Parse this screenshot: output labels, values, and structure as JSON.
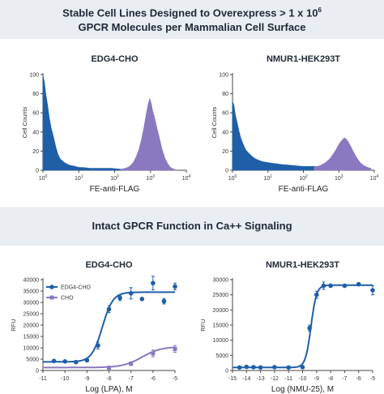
{
  "header": {
    "line1_main": "Stable Cell Lines Designed to Overexpress > 1 x 10",
    "line1_sup": "6",
    "line2": "GPCR Molecules per Mammalian Cell Surface"
  },
  "section2": {
    "title": "Intact GPCR Function in Ca++ Signaling"
  },
  "colors": {
    "blue": "#1f5fa8",
    "purple": "#8a78c0",
    "band": "#e9eef3"
  },
  "chart_data": [
    {
      "type": "area",
      "title": "EDG4-CHO",
      "xlabel": "FE-anti-FLAG",
      "ylabel": "Cell Counts",
      "xscale": "log",
      "xlim": [
        1,
        10000
      ],
      "ylim": [
        0,
        100
      ],
      "xticks": [
        {
          "v": 1,
          "m": "10",
          "e": "0"
        },
        {
          "v": 10,
          "m": "10",
          "e": "1"
        },
        {
          "v": 100,
          "m": "10",
          "e": "2"
        },
        {
          "v": 1000,
          "m": "10",
          "e": "3"
        },
        {
          "v": 10000,
          "m": "10",
          "e": "4"
        }
      ],
      "yticks": [
        0,
        20,
        40,
        60,
        80,
        100
      ],
      "series": [
        {
          "color": "blue",
          "x": [
            1,
            1.1,
            1.2,
            1.35,
            1.5,
            1.7,
            2,
            2.3,
            2.6,
            3,
            4,
            5,
            6,
            8,
            10,
            13,
            20,
            40,
            80,
            150,
            300
          ],
          "y": [
            100,
            92,
            80,
            68,
            55,
            44,
            34,
            24,
            17,
            12,
            8,
            6,
            5,
            4,
            3,
            3,
            2,
            2,
            2,
            1,
            1
          ]
        },
        {
          "color": "purple",
          "x": [
            150,
            200,
            260,
            330,
            400,
            480,
            560,
            650,
            750,
            850,
            950,
            1050,
            1150,
            1300,
            1500,
            1800,
            2100,
            2500,
            3000,
            3600,
            4500,
            5500
          ],
          "y": [
            1,
            2,
            4,
            8,
            14,
            22,
            32,
            44,
            57,
            68,
            75,
            70,
            62,
            55,
            45,
            33,
            22,
            13,
            7,
            3,
            1,
            0
          ]
        }
      ]
    },
    {
      "type": "area",
      "title": "NMUR1-HEK293T",
      "xlabel": "FE-anti-FLAG",
      "ylabel": "Cell Counts",
      "xscale": "log",
      "xlim": [
        1,
        10000
      ],
      "ylim": [
        0,
        100
      ],
      "xticks": [
        {
          "v": 1,
          "m": "10",
          "e": "0"
        },
        {
          "v": 10,
          "m": "10",
          "e": "1"
        },
        {
          "v": 100,
          "m": "10",
          "e": "2"
        },
        {
          "v": 1000,
          "m": "10",
          "e": "3"
        },
        {
          "v": 10000,
          "m": "10",
          "e": "4"
        }
      ],
      "yticks": [
        0,
        20,
        40,
        60,
        80,
        100
      ],
      "series": [
        {
          "color": "blue",
          "x": [
            1,
            1.1,
            1.2,
            1.35,
            1.5,
            1.7,
            2,
            2.4,
            3,
            4,
            5,
            7,
            10,
            15,
            25,
            50,
            100,
            200,
            400
          ],
          "y": [
            72,
            68,
            58,
            50,
            42,
            34,
            27,
            21,
            17,
            13,
            11,
            9,
            8,
            7,
            6,
            5,
            4,
            4,
            3
          ]
        },
        {
          "color": "purple",
          "x": [
            200,
            300,
            420,
            560,
            700,
            850,
            1000,
            1200,
            1450,
            1750,
            2100,
            2600,
            3200,
            4000,
            5000,
            6500,
            8000
          ],
          "y": [
            3,
            5,
            8,
            12,
            17,
            22,
            27,
            31,
            34,
            31,
            26,
            19,
            13,
            8,
            5,
            3,
            2
          ]
        }
      ]
    },
    {
      "type": "scatter",
      "title": "EDG4-CHO",
      "xlabel": "Log (LPA), M",
      "ylabel": "RFU",
      "xlim": [
        -11,
        -5
      ],
      "ylim": [
        0,
        40000
      ],
      "xticks": [
        -11,
        -10,
        -9,
        -8,
        -7,
        -6,
        -5
      ],
      "yticks": [
        0,
        5000,
        10000,
        15000,
        20000,
        25000,
        30000,
        35000,
        40000
      ],
      "legend": [
        {
          "name": "EDG4-CHO",
          "color": "blue"
        },
        {
          "name": "CHO",
          "color": "purple"
        }
      ],
      "series": [
        {
          "name": "EDG4-CHO",
          "color": "blue",
          "points": [
            {
              "x": -10.5,
              "y": 4200,
              "e": 0
            },
            {
              "x": -10,
              "y": 4000,
              "e": 0
            },
            {
              "x": -9.5,
              "y": 3700,
              "e": 0
            },
            {
              "x": -9,
              "y": 4500,
              "e": 600
            },
            {
              "x": -8.5,
              "y": 11000,
              "e": 1500
            },
            {
              "x": -8,
              "y": 27000,
              "e": 1500
            },
            {
              "x": -7.5,
              "y": 32000,
              "e": 1200
            },
            {
              "x": -7,
              "y": 34000,
              "e": 2500
            },
            {
              "x": -6.5,
              "y": 31500,
              "e": 0
            },
            {
              "x": -6,
              "y": 38500,
              "e": 3000
            },
            {
              "x": -5.5,
              "y": 30500,
              "e": 1200
            },
            {
              "x": -5,
              "y": 37000,
              "e": 1500
            }
          ],
          "fit": {
            "bottom": 3800,
            "top": 34500,
            "ec50": -8.3,
            "hill": 1.8
          }
        },
        {
          "name": "CHO",
          "color": "purple",
          "points": [
            {
              "x": -8,
              "y": 1200,
              "e": 0
            },
            {
              "x": -7,
              "y": 3000,
              "e": 800
            },
            {
              "x": -6,
              "y": 7500,
              "e": 1500
            },
            {
              "x": -5,
              "y": 9500,
              "e": 1500
            }
          ],
          "fit": {
            "bottom": 1300,
            "top": 10500,
            "ec50": -6.5,
            "hill": 1.0
          }
        }
      ]
    },
    {
      "type": "scatter",
      "title": "NMUR1-HEK293T",
      "xlabel": "Log (NMU-25), M",
      "ylabel": "RFU",
      "xlim": [
        -15,
        -5
      ],
      "ylim": [
        0,
        30000
      ],
      "xticks": [
        -15,
        -14,
        -13,
        -12,
        -11,
        -10,
        -9,
        -8,
        -7,
        -6,
        -5
      ],
      "yticks": [
        0,
        5000,
        10000,
        15000,
        20000,
        25000,
        30000
      ],
      "series": [
        {
          "name": "NMUR1-HEK293T",
          "color": "blue",
          "points": [
            {
              "x": -14.5,
              "y": 1000,
              "e": 0
            },
            {
              "x": -14,
              "y": 1200,
              "e": 0
            },
            {
              "x": -13.5,
              "y": 1100,
              "e": 0
            },
            {
              "x": -13,
              "y": 1000,
              "e": 0
            },
            {
              "x": -12,
              "y": 1100,
              "e": 0
            },
            {
              "x": -11,
              "y": 1000,
              "e": 0
            },
            {
              "x": -10,
              "y": 1100,
              "e": 0
            },
            {
              "x": -9.5,
              "y": 14000,
              "e": 1000
            },
            {
              "x": -9,
              "y": 25000,
              "e": 1200
            },
            {
              "x": -8.5,
              "y": 28000,
              "e": 1200
            },
            {
              "x": -8,
              "y": 28000,
              "e": 0
            },
            {
              "x": -7,
              "y": 28000,
              "e": 0
            },
            {
              "x": -6,
              "y": 28500,
              "e": 0
            },
            {
              "x": -5,
              "y": 26500,
              "e": 1500
            }
          ],
          "fit": {
            "bottom": 1000,
            "top": 28200,
            "ec50": -9.4,
            "hill": 2.2
          }
        }
      ]
    }
  ]
}
